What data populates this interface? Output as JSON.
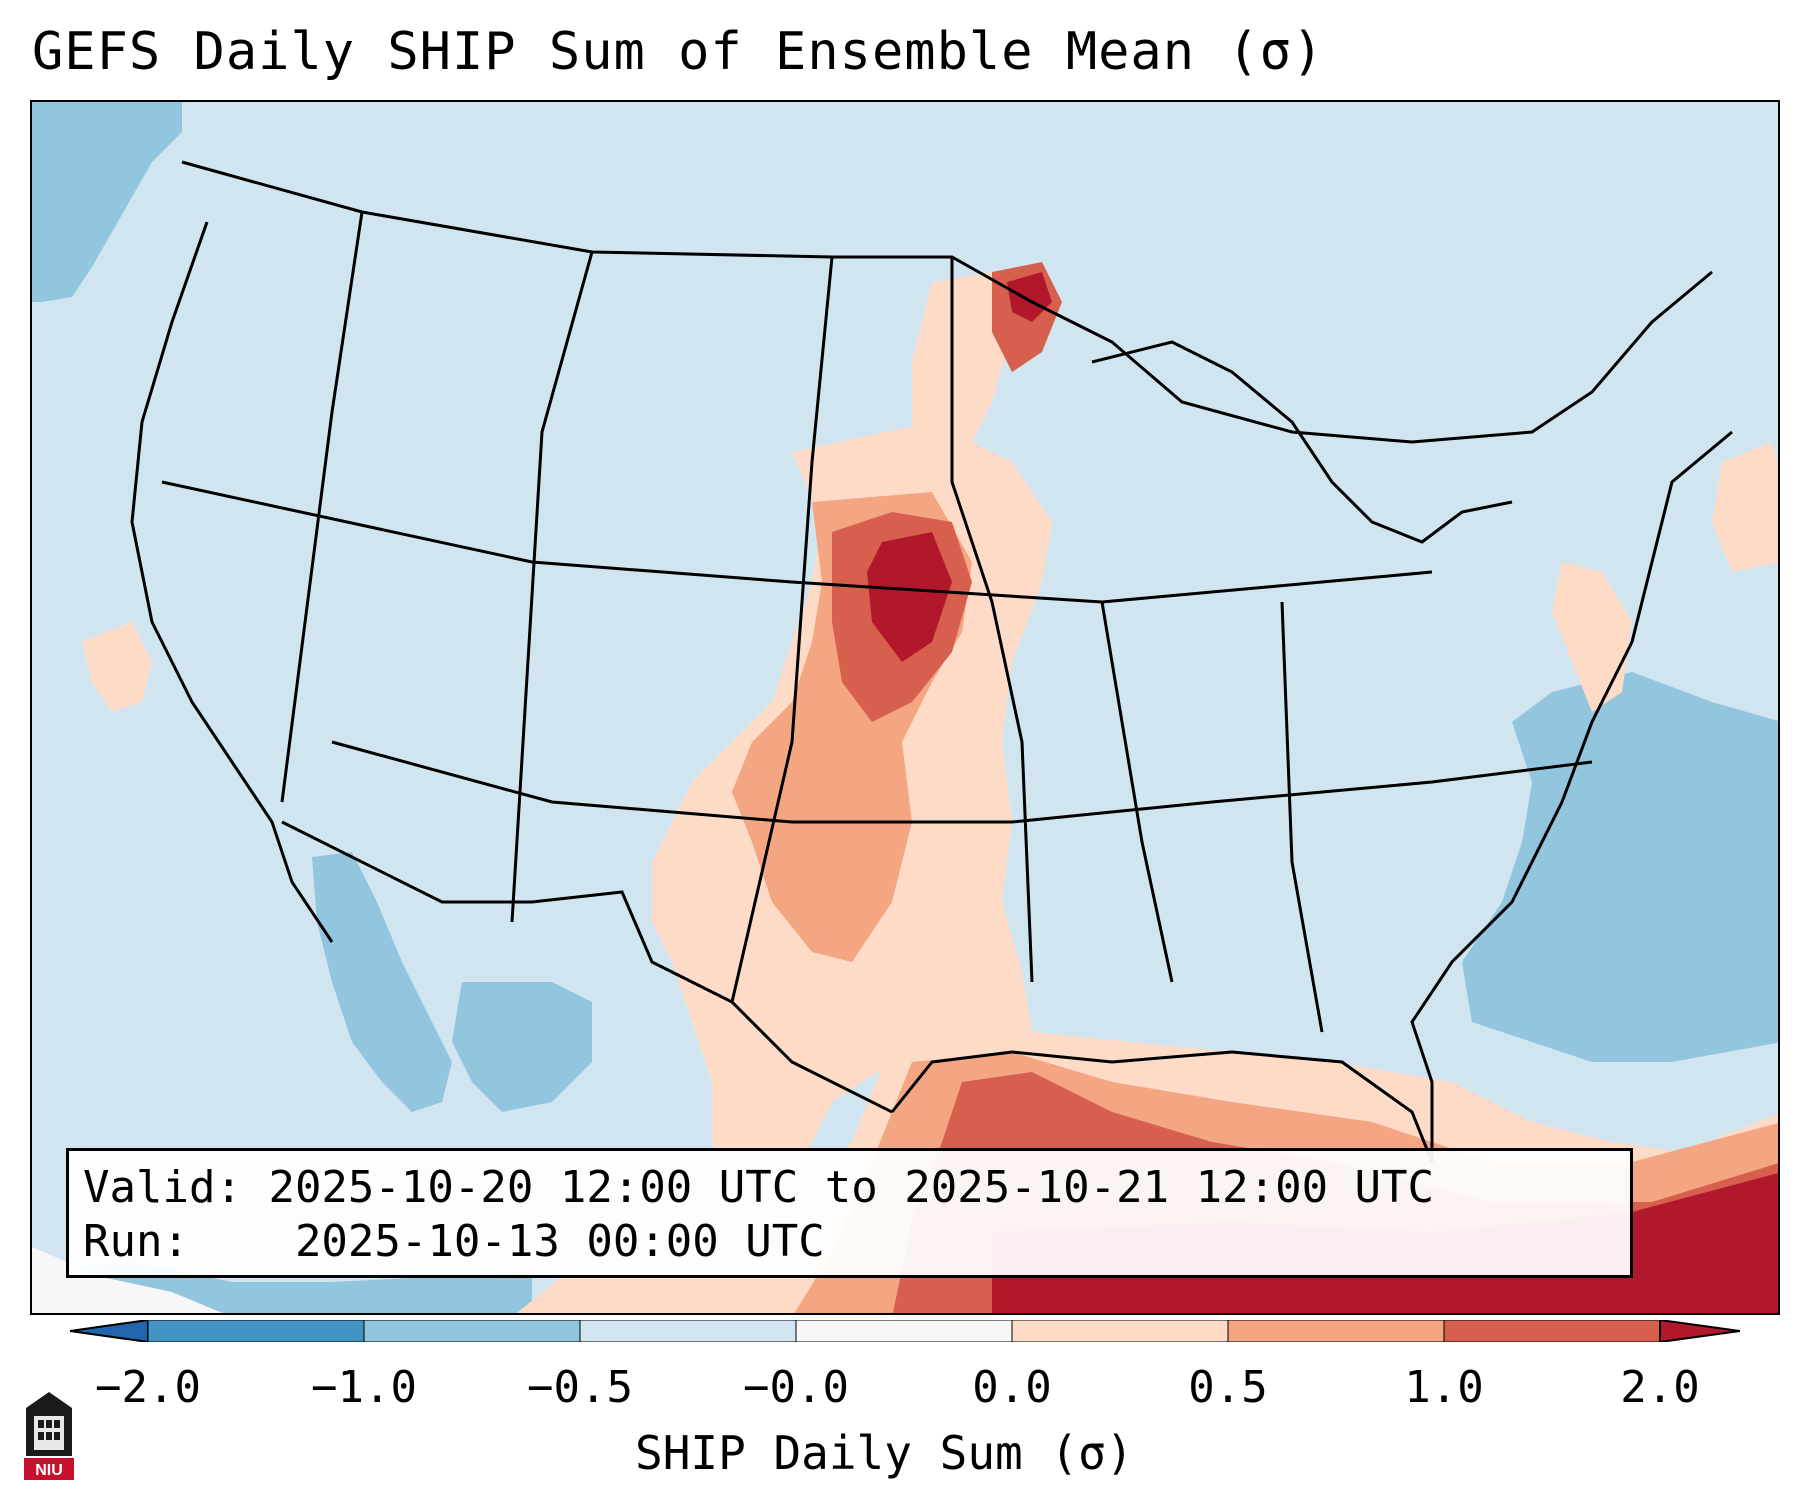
{
  "title": "GEFS Daily SHIP Sum of Ensemble Mean (σ)",
  "info": {
    "valid_label": "Valid:",
    "valid_value": "2025-10-20 12:00 UTC to 2025-10-21 12:00 UTC",
    "run_label": "Run:",
    "run_value": "2025-10-13 00:00 UTC"
  },
  "colorbar": {
    "label": "SHIP Daily Sum (σ)",
    "ticks": [
      "−2.0",
      "−1.0",
      "−0.5",
      "−0.0",
      "0.0",
      "0.5",
      "1.0",
      "2.0"
    ],
    "colors": [
      "#4393c3",
      "#92c5de",
      "#d1e5f0",
      "#f7f7f7",
      "#fddbc7",
      "#f4a582",
      "#d6604d",
      "#b2182b"
    ],
    "under_color": "#2166ac",
    "over_color": "#67001f"
  },
  "map": {
    "domain": "Continental United States, southern Canada, northern Mexico, Gulf of Mexico, Caribbean",
    "background_value_color": "#d1e5f0",
    "features": [
      {
        "name": "Northern Plains / Nebraska maximum",
        "category": "1.0 to 2.0",
        "color": "#b2182b"
      },
      {
        "name": "Gulf of Mexico elevated region",
        "category": "1.0 to 2.0",
        "color": "#d6604d"
      },
      {
        "name": "Caribbean maximum",
        "category": "> 1.0",
        "color": "#b2182b"
      },
      {
        "name": "Central Plains / Texas",
        "category": "0.0 to 1.0",
        "color": "#fddbc7"
      },
      {
        "name": "Minnesota / Lake Superior",
        "category": "0.5 to 2.0",
        "color": "#d6604d"
      },
      {
        "name": "Western Atlantic",
        "category": "-1.0 to -0.5",
        "color": "#92c5de"
      },
      {
        "name": "Gulf of California",
        "category": "-1.0 to -0.5",
        "color": "#92c5de"
      },
      {
        "name": "Northern Pacific edge",
        "category": "-1.0 to -0.5",
        "color": "#92c5de"
      }
    ]
  },
  "logo": {
    "text": "NIU"
  }
}
